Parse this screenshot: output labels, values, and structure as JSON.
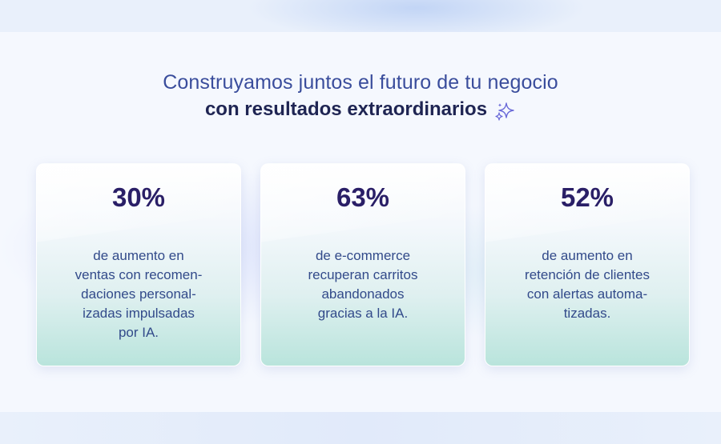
{
  "header": {
    "headline": "Construyamos juntos el futuro de tu negocio",
    "subheadline": "con resultados extraordinarios",
    "sparkle_icon": "sparkle-icon"
  },
  "cards": [
    {
      "value": "30%",
      "lines": [
        "de aumento en",
        "ventas con recomen-",
        "daciones personal-",
        "izadas impulsadas",
        "por IA."
      ]
    },
    {
      "value": "63%",
      "lines": [
        "de e-commerce",
        "recuperan carritos",
        "abandonados",
        "gracias a la IA."
      ]
    },
    {
      "value": "52%",
      "lines": [
        "de aumento en",
        "retención de clientes",
        "con alertas automa-",
        "tizadas."
      ]
    }
  ],
  "colors": {
    "headline": "#3a4d9c",
    "subheadline": "#1f2553",
    "value": "#2a1f67",
    "body_text": "#324a8a",
    "sparkle": "#6a6ad8"
  }
}
